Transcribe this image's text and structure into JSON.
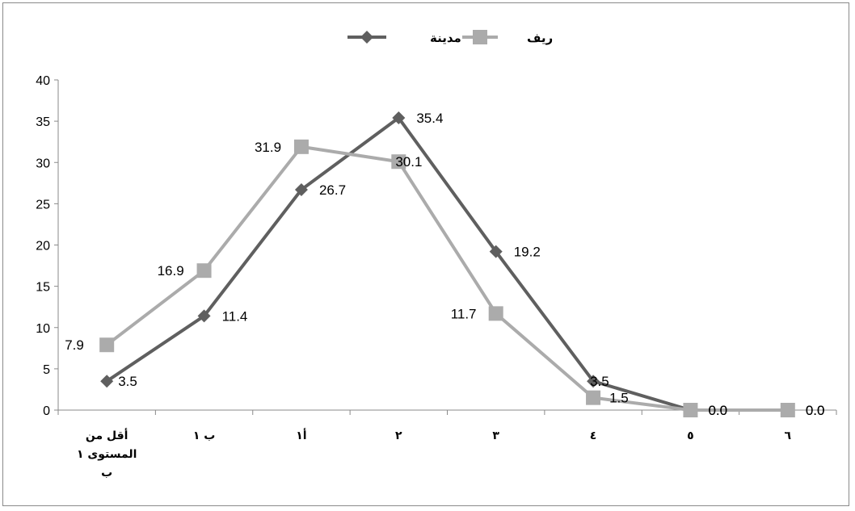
{
  "chart_data": {
    "type": "line",
    "categories": [
      "أقل من المستوى ١ ب",
      "ب ١",
      "أ١",
      "٢",
      "٣",
      "٤",
      "٥",
      "٦"
    ],
    "category_lines": [
      [
        "أقل من",
        "المستوى ١",
        "ب"
      ],
      [
        "ب ١"
      ],
      [
        "أ١"
      ],
      [
        "٢"
      ],
      [
        "٣"
      ],
      [
        "٤"
      ],
      [
        "٥"
      ],
      [
        "٦"
      ]
    ],
    "series": [
      {
        "name": "مدينة",
        "values": [
          3.5,
          11.4,
          26.7,
          35.4,
          19.2,
          3.5,
          0.0,
          0.0
        ],
        "labels": [
          "3.5",
          "11.4",
          "26.7",
          "35.4",
          "19.2",
          "3.5",
          "0.0",
          "0.0"
        ],
        "color": "#5f5f5f",
        "marker": "diamond"
      },
      {
        "name": "ريف",
        "values": [
          7.9,
          16.9,
          31.9,
          30.1,
          11.7,
          1.5,
          0.0,
          0.0
        ],
        "labels": [
          "7.9",
          "16.9",
          "31.9",
          "30.1",
          "11.7",
          "1.5",
          "0.0",
          "0.0"
        ],
        "color": "#ababab",
        "marker": "square"
      }
    ],
    "ylim": [
      0,
      40
    ],
    "yticks": [
      0,
      5,
      10,
      15,
      20,
      25,
      30,
      35,
      40
    ],
    "title": "",
    "xlabel": "",
    "ylabel": "",
    "grid": false,
    "legend_position": "top-center"
  }
}
